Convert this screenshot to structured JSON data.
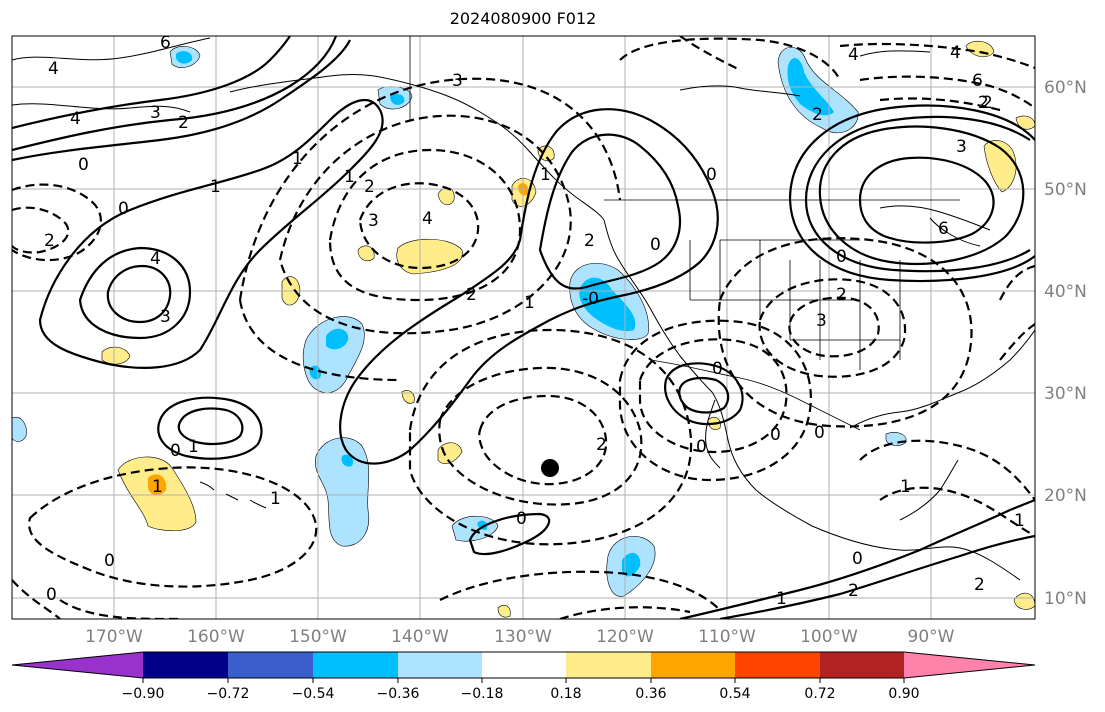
{
  "title": "2024080900 F012",
  "lat_labels": [
    "60°N",
    "50°N",
    "40°N",
    "30°N",
    "20°N",
    "10°N"
  ],
  "lon_labels": [
    "170°W",
    "160°W",
    "150°W",
    "140°W",
    "130°W",
    "120°W",
    "110°W",
    "100°W",
    "90°W"
  ],
  "colorbar": {
    "colors": [
      "#9932cc",
      "#9932cc",
      "#00008b",
      "#3a5fcd",
      "#00bfff",
      "#aee3ff",
      "#ffffff",
      "#ffec8b",
      "#ffa500",
      "#ff4500",
      "#b22222",
      "#ff82ab",
      "#ff82ab"
    ],
    "tick_labels": [
      "−0.90",
      "−0.72",
      "−0.54",
      "−0.36",
      "−0.18",
      "0.18",
      "0.36",
      "0.54",
      "0.72",
      "0.90"
    ]
  },
  "fill_colors": {
    "light_blue": "#aee3ff",
    "blue": "#00bfff",
    "yellow": "#ffec8b",
    "orange": "#ffa500"
  },
  "contour_labels": [
    "4",
    "4",
    "3",
    "2",
    "1",
    "0",
    "6",
    "1",
    "2",
    "3",
    "4",
    "0",
    "4",
    "3",
    "3",
    "2",
    "1",
    "2",
    "0",
    "1",
    "0",
    "3",
    "2",
    "1",
    "-0",
    "4",
    "2",
    "0",
    "6",
    "6",
    "2",
    "2",
    "4",
    "0",
    "1",
    "0",
    "0",
    "2",
    "0",
    "0",
    "1",
    "1",
    "0",
    "0",
    "2",
    "0",
    "1",
    "3",
    "2",
    "0",
    "1",
    "1",
    "2"
  ]
}
